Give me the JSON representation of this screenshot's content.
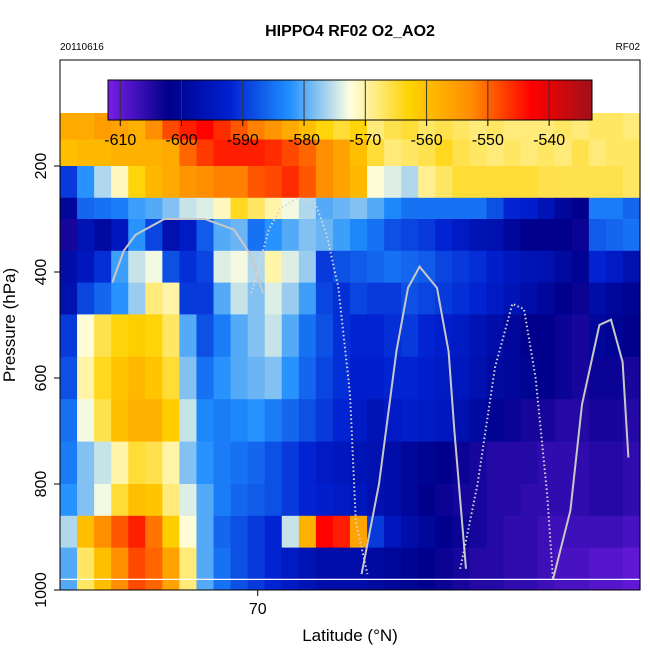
{
  "chart_data": {
    "type": "heatmap",
    "title": "HIPPO4 RF02 O2_AO2",
    "date_label": "20110616",
    "flight_label": "RF02",
    "xlabel": "Latitude (°N)",
    "ylabel": "Pressure (hPa)",
    "x_ticks": [
      "70"
    ],
    "x_tick_values": [
      70
    ],
    "xlim": [
      62.5,
      84.5
    ],
    "y_ticks": [
      "200",
      "400",
      "600",
      "800",
      "1000"
    ],
    "y_tick_values": [
      200,
      400,
      600,
      800,
      1000
    ],
    "ylim": [
      1000,
      0
    ],
    "y_axis_reversed": true,
    "colorbar": {
      "ticks": [
        "-610",
        "-600",
        "-590",
        "-580",
        "-570",
        "-560",
        "-550",
        "-540"
      ],
      "tick_values": [
        -610,
        -600,
        -590,
        -580,
        -570,
        -560,
        -550,
        -540
      ],
      "range": [
        -612,
        -533
      ],
      "colors": [
        "#7a1ee6",
        "#00008b",
        "#0020d0",
        "#1f8fff",
        "#ffffe0",
        "#ffd200",
        "#ff8c00",
        "#ff0000",
        "#a0101a"
      ],
      "placement": "top-inside"
    },
    "grid": false,
    "heat_rows": [
      {
        "p": [
          100,
          150
        ],
        "values": [
          -557,
          -557,
          -555,
          -556,
          -558,
          -553,
          -548,
          -545,
          -543,
          -546,
          -549,
          -552,
          -554,
          -557,
          -560,
          -563,
          -565,
          -563,
          -568,
          -566,
          -565,
          -567,
          -566,
          -567,
          -568,
          -567,
          -568,
          -568,
          -568,
          -567,
          -568,
          -567,
          -567,
          -568
        ]
      },
      {
        "p": [
          150,
          200
        ],
        "values": [
          -560,
          -559,
          -559,
          -558,
          -558,
          -558,
          -557,
          -550,
          -547,
          -545,
          -545,
          -545,
          -546,
          -548,
          -550,
          -553,
          -556,
          -560,
          -565,
          -568,
          -567,
          -566,
          -564,
          -566,
          -567,
          -568,
          -567,
          -568,
          -567,
          -568,
          -566,
          -568,
          -567,
          -567
        ]
      },
      {
        "p": [
          200,
          260
        ],
        "values": [
          -590,
          -582,
          -576,
          -571,
          -563,
          -559,
          -557,
          -554,
          -553,
          -552,
          -552,
          -549,
          -548,
          -546,
          -549,
          -553,
          -556,
          -559,
          -572,
          -574,
          -576,
          -569,
          -567,
          -565,
          -565,
          -565,
          -565,
          -565,
          -566,
          -566,
          -566,
          -566,
          -566,
          -567
        ]
      },
      {
        "p": [
          260,
          300
        ],
        "values": [
          -600,
          -586,
          -585,
          -584,
          -581,
          -580,
          -578,
          -575,
          -574,
          -571,
          -564,
          -567,
          -570,
          -573,
          -576,
          -580,
          -579,
          -578,
          -580,
          -583,
          -585,
          -585,
          -585,
          -585,
          -585,
          -588,
          -592,
          -593,
          -596,
          -600,
          -602,
          -584,
          -584,
          -586
        ]
      },
      {
        "p": [
          300,
          360
        ],
        "values": [
          -604,
          -596,
          -599,
          -595,
          -582,
          -589,
          -597,
          -594,
          -587,
          -580,
          -579,
          -585,
          -582,
          -580,
          -578,
          -579,
          -581,
          -583,
          -585,
          -588,
          -589,
          -590,
          -592,
          -594,
          -596,
          -597,
          -600,
          -602,
          -602,
          -602,
          -603,
          -587,
          -586,
          -585
        ]
      },
      {
        "p": [
          360,
          420
        ],
        "values": [
          -598,
          -595,
          -591,
          -581,
          -575,
          -573,
          -588,
          -591,
          -589,
          -574,
          -573,
          -576,
          -570,
          -574,
          -577,
          -590,
          -588,
          -587,
          -586,
          -585,
          -586,
          -587,
          -589,
          -590,
          -591,
          -593,
          -595,
          -596,
          -597,
          -599,
          -601,
          -592,
          -594,
          -597
        ]
      },
      {
        "p": [
          420,
          480
        ],
        "values": [
          -597,
          -589,
          -586,
          -582,
          -577,
          -568,
          -570,
          -590,
          -590,
          -580,
          -575,
          -578,
          -574,
          -577,
          -581,
          -589,
          -591,
          -589,
          -590,
          -590,
          -588,
          -589,
          -590,
          -591,
          -592,
          -594,
          -596,
          -598,
          -600,
          -602,
          -603,
          -598,
          -600,
          -601
        ]
      },
      {
        "p": [
          480,
          560
        ],
        "values": [
          -590,
          -572,
          -566,
          -563,
          -562,
          -563,
          -567,
          -580,
          -588,
          -584,
          -580,
          -578,
          -575,
          -580,
          -585,
          -588,
          -591,
          -592,
          -592,
          -591,
          -590,
          -592,
          -593,
          -594,
          -596,
          -598,
          -600,
          -602,
          -602,
          -603,
          -604,
          -600,
          -601,
          -602
        ]
      },
      {
        "p": [
          560,
          640
        ],
        "values": [
          -588,
          -570,
          -564,
          -561,
          -559,
          -561,
          -565,
          -578,
          -585,
          -582,
          -580,
          -579,
          -578,
          -582,
          -586,
          -589,
          -591,
          -593,
          -593,
          -592,
          -592,
          -593,
          -594,
          -595,
          -597,
          -599,
          -600,
          -601,
          -602,
          -603,
          -604,
          -603,
          -603,
          -604
        ]
      },
      {
        "p": [
          640,
          720
        ],
        "values": [
          -585,
          -573,
          -566,
          -560,
          -558,
          -558,
          -562,
          -575,
          -583,
          -584,
          -583,
          -582,
          -584,
          -586,
          -588,
          -590,
          -592,
          -594,
          -596,
          -594,
          -593,
          -594,
          -595,
          -597,
          -599,
          -601,
          -603,
          -604,
          -604,
          -605,
          -605,
          -604,
          -604,
          -605
        ]
      },
      {
        "p": [
          720,
          800
        ],
        "values": [
          -584,
          -578,
          -575,
          -570,
          -565,
          -566,
          -570,
          -578,
          -582,
          -584,
          -585,
          -586,
          -588,
          -590,
          -592,
          -594,
          -595,
          -596,
          -597,
          -598,
          -600,
          -601,
          -602,
          -603,
          -604,
          -605,
          -605,
          -605,
          -606,
          -606,
          -606,
          -605,
          -605,
          -606
        ]
      },
      {
        "p": [
          800,
          860
        ],
        "values": [
          -582,
          -578,
          -573,
          -565,
          -560,
          -561,
          -568,
          -574,
          -580,
          -584,
          -586,
          -587,
          -588,
          -590,
          -592,
          -593,
          -594,
          -595,
          -597,
          -598,
          -600,
          -602,
          -603,
          -604,
          -604,
          -605,
          -605,
          -606,
          -606,
          -606,
          -606,
          -605,
          -605,
          -606
        ]
      },
      {
        "p": [
          860,
          920
        ],
        "values": [
          -576,
          -560,
          -553,
          -549,
          -545,
          -551,
          -562,
          -572,
          -580,
          -586,
          -588,
          -590,
          -592,
          -575,
          -558,
          -543,
          -545,
          -556,
          -590,
          -595,
          -598,
          -600,
          -602,
          -603,
          -604,
          -605,
          -606,
          -606,
          -607,
          -607,
          -607,
          -607,
          -607,
          -608
        ]
      },
      {
        "p": [
          920,
          1000
        ],
        "values": [
          -580,
          -567,
          -560,
          -553,
          -548,
          -550,
          -556,
          -568,
          -580,
          -585,
          -588,
          -590,
          -592,
          -594,
          -596,
          -598,
          -598,
          -598,
          -599,
          -600,
          -601,
          -602,
          -603,
          -604,
          -605,
          -605,
          -606,
          -606,
          -607,
          -608,
          -608,
          -609,
          -609,
          -610
        ]
      }
    ],
    "flight_profiles": [
      {
        "style": "solid",
        "color": "#c8c8c8",
        "points": [
          [
            0.09,
            0.42
          ],
          [
            0.11,
            0.36
          ],
          [
            0.13,
            0.33
          ],
          [
            0.18,
            0.3
          ],
          [
            0.25,
            0.3
          ],
          [
            0.3,
            0.32
          ],
          [
            0.33,
            0.37
          ],
          [
            0.35,
            0.44
          ]
        ]
      },
      {
        "style": "dotted",
        "color": "#d8d8d8",
        "points": [
          [
            0.33,
            0.44
          ],
          [
            0.36,
            0.32
          ],
          [
            0.38,
            0.28
          ],
          [
            0.41,
            0.26
          ],
          [
            0.44,
            0.27
          ],
          [
            0.46,
            0.33
          ],
          [
            0.48,
            0.43
          ],
          [
            0.5,
            0.63
          ],
          [
            0.51,
            0.87
          ],
          [
            0.53,
            0.97
          ]
        ]
      },
      {
        "style": "solid",
        "color": "#c8c8c8",
        "points": [
          [
            0.52,
            0.97
          ],
          [
            0.55,
            0.8
          ],
          [
            0.58,
            0.55
          ],
          [
            0.6,
            0.43
          ],
          [
            0.62,
            0.39
          ],
          [
            0.65,
            0.43
          ],
          [
            0.67,
            0.55
          ],
          [
            0.68,
            0.7
          ],
          [
            0.7,
            0.96
          ]
        ]
      },
      {
        "style": "dotted",
        "color": "#d8d8d8",
        "points": [
          [
            0.69,
            0.96
          ],
          [
            0.72,
            0.8
          ],
          [
            0.75,
            0.58
          ],
          [
            0.78,
            0.46
          ],
          [
            0.8,
            0.47
          ],
          [
            0.82,
            0.6
          ],
          [
            0.84,
            0.82
          ],
          [
            0.85,
            0.98
          ]
        ]
      },
      {
        "style": "solid",
        "color": "#c8c8c8",
        "points": [
          [
            0.85,
            0.98
          ],
          [
            0.88,
            0.85
          ],
          [
            0.9,
            0.65
          ],
          [
            0.93,
            0.5
          ],
          [
            0.95,
            0.49
          ],
          [
            0.97,
            0.57
          ],
          [
            0.98,
            0.75
          ]
        ]
      }
    ],
    "reference_line": {
      "p": 980,
      "color": "#ffffff"
    }
  }
}
